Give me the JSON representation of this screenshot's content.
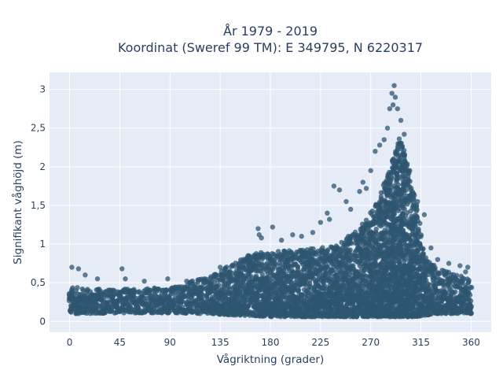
{
  "chart_data": {
    "type": "scatter",
    "title_line1": "År 1979 - 2019",
    "title_line2": "Koordinat (Sweref 99 TM): E 349795, N 6220317",
    "xlabel": "Vågriktning (grader)",
    "ylabel": "Signifikant våghöjd (m)",
    "xlim": [
      -18,
      378
    ],
    "ylim": [
      -0.14,
      3.22
    ],
    "x_ticks": [
      0,
      45,
      90,
      135,
      180,
      225,
      270,
      315,
      360
    ],
    "x_tick_labels": [
      "0",
      "45",
      "90",
      "135",
      "180",
      "225",
      "270",
      "315",
      "360"
    ],
    "y_ticks": [
      0,
      0.5,
      1,
      1.5,
      2,
      2.5,
      3
    ],
    "y_tick_labels": [
      "0",
      "0,5",
      "1",
      "1,5",
      "2",
      "2,5",
      "3"
    ],
    "grid": true,
    "background_color": "#e5ecf6",
    "marker_color": "#2e5570",
    "envelope": {
      "x": [
        0,
        20,
        45,
        90,
        120,
        135,
        150,
        165,
        180,
        200,
        225,
        240,
        255,
        265,
        275,
        285,
        292,
        296,
        300,
        305,
        310,
        315,
        320,
        330,
        345,
        360
      ],
      "lower": [
        0.1,
        0.1,
        0.11,
        0.11,
        0.1,
        0.09,
        0.08,
        0.07,
        0.06,
        0.06,
        0.06,
        0.06,
        0.06,
        0.06,
        0.06,
        0.06,
        0.06,
        0.06,
        0.06,
        0.06,
        0.06,
        0.07,
        0.08,
        0.1,
        0.1,
        0.1
      ],
      "upper": [
        0.45,
        0.42,
        0.42,
        0.44,
        0.56,
        0.66,
        0.78,
        0.88,
        0.9,
        0.92,
        0.95,
        1.0,
        1.15,
        1.3,
        1.55,
        1.9,
        2.2,
        2.4,
        2.2,
        1.9,
        1.6,
        1.15,
        0.8,
        0.68,
        0.62,
        0.55
      ]
    },
    "outliers": [
      {
        "x": 2,
        "y": 0.7
      },
      {
        "x": 8,
        "y": 0.68
      },
      {
        "x": 14,
        "y": 0.6
      },
      {
        "x": 25,
        "y": 0.55
      },
      {
        "x": 47,
        "y": 0.68
      },
      {
        "x": 50,
        "y": 0.55
      },
      {
        "x": 67,
        "y": 0.52
      },
      {
        "x": 88,
        "y": 0.55
      },
      {
        "x": 105,
        "y": 0.52
      },
      {
        "x": 135,
        "y": 0.7
      },
      {
        "x": 160,
        "y": 0.85
      },
      {
        "x": 169,
        "y": 1.2
      },
      {
        "x": 170,
        "y": 1.12
      },
      {
        "x": 172,
        "y": 1.08
      },
      {
        "x": 182,
        "y": 1.22
      },
      {
        "x": 190,
        "y": 1.05
      },
      {
        "x": 200,
        "y": 1.12
      },
      {
        "x": 208,
        "y": 1.1
      },
      {
        "x": 218,
        "y": 1.15
      },
      {
        "x": 225,
        "y": 1.28
      },
      {
        "x": 231,
        "y": 1.4
      },
      {
        "x": 233,
        "y": 1.32
      },
      {
        "x": 237,
        "y": 1.75
      },
      {
        "x": 242,
        "y": 1.7
      },
      {
        "x": 248,
        "y": 1.55
      },
      {
        "x": 252,
        "y": 1.45
      },
      {
        "x": 260,
        "y": 1.68
      },
      {
        "x": 263,
        "y": 1.8
      },
      {
        "x": 266,
        "y": 1.72
      },
      {
        "x": 270,
        "y": 1.95
      },
      {
        "x": 274,
        "y": 2.2
      },
      {
        "x": 278,
        "y": 2.28
      },
      {
        "x": 282,
        "y": 2.35
      },
      {
        "x": 285,
        "y": 2.5
      },
      {
        "x": 287,
        "y": 2.75
      },
      {
        "x": 289,
        "y": 2.95
      },
      {
        "x": 290,
        "y": 2.8
      },
      {
        "x": 291,
        "y": 3.05
      },
      {
        "x": 292,
        "y": 2.9
      },
      {
        "x": 294,
        "y": 2.75
      },
      {
        "x": 297,
        "y": 2.6
      },
      {
        "x": 300,
        "y": 2.42
      },
      {
        "x": 305,
        "y": 1.95
      },
      {
        "x": 312,
        "y": 1.55
      },
      {
        "x": 318,
        "y": 1.38
      },
      {
        "x": 324,
        "y": 0.95
      },
      {
        "x": 330,
        "y": 0.8
      },
      {
        "x": 340,
        "y": 0.75
      },
      {
        "x": 350,
        "y": 0.72
      },
      {
        "x": 357,
        "y": 0.7
      },
      {
        "x": 355,
        "y": 0.64
      }
    ]
  }
}
